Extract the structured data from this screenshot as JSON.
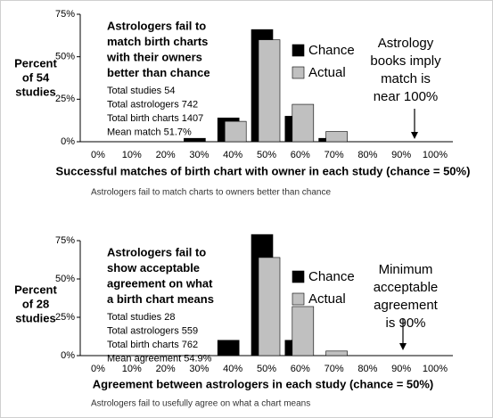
{
  "chart_data": [
    {
      "type": "bar",
      "ylabel": [
        "Percent",
        "of 54",
        "studies"
      ],
      "xlabel": "Successful matches of birth chart with owner in each study (chance = 50%)",
      "caption": "Astrologers fail to match charts to owners better than chance",
      "box_title": [
        "Astrologers fail to",
        "match birth charts",
        "with their owners",
        "better than chance"
      ],
      "box_stats": [
        "Total studies 54",
        "Total astrologers 742",
        "Total birth charts 1407",
        "Mean match 51.7%"
      ],
      "annotation": [
        "Astrology",
        "books imply",
        "match is",
        "near 100%"
      ],
      "categories": [
        "0%",
        "10%",
        "20%",
        "30%",
        "40%",
        "50%",
        "60%",
        "70%",
        "80%",
        "90%",
        "100%"
      ],
      "series": [
        {
          "name": "Chance",
          "color": "#000000",
          "values": [
            0,
            0,
            0,
            2,
            14,
            66,
            15,
            2,
            0,
            0,
            0
          ]
        },
        {
          "name": "Actual",
          "color": "#c0c0c0",
          "values": [
            0,
            0,
            0,
            0,
            12,
            60,
            22,
            6,
            0,
            0,
            0
          ]
        }
      ],
      "ylim": [
        0,
        75
      ],
      "yticks": [
        {
          "value": 0,
          "label": "0%"
        },
        {
          "value": 25,
          "label": "25%"
        },
        {
          "value": 50,
          "label": "50%"
        },
        {
          "value": 75,
          "label": "75%"
        }
      ]
    },
    {
      "type": "bar",
      "ylabel": [
        "Percent",
        "of 28",
        "studies"
      ],
      "xlabel": "Agreement between astrologers in each study (chance = 50%)",
      "caption": "Astrologers fail to usefully agree on what a chart means",
      "box_title": [
        "Astrologers fail to",
        "show acceptable",
        "agreement on what",
        "a birth chart means"
      ],
      "box_stats": [
        "Total studies 28",
        "Total astrologers 559",
        "Total birth charts 762",
        "Mean agreement 54.9%"
      ],
      "annotation": [
        "Minimum",
        "acceptable",
        "agreement",
        "is 90%"
      ],
      "categories": [
        "0%",
        "10%",
        "20%",
        "30%",
        "40%",
        "50%",
        "60%",
        "70%",
        "80%",
        "90%",
        "100%"
      ],
      "series": [
        {
          "name": "Chance",
          "color": "#000000",
          "values": [
            0,
            0,
            0,
            0,
            10,
            79,
            10,
            0,
            0,
            0,
            0
          ]
        },
        {
          "name": "Actual",
          "color": "#c0c0c0",
          "values": [
            0,
            0,
            0,
            0,
            0,
            64,
            32,
            3,
            0,
            0,
            0
          ]
        }
      ],
      "ylim": [
        0,
        75
      ],
      "yticks": [
        {
          "value": 0,
          "label": "0%"
        },
        {
          "value": 25,
          "label": "25%"
        },
        {
          "value": 50,
          "label": "50%"
        },
        {
          "value": 75,
          "label": "75%"
        }
      ]
    }
  ]
}
